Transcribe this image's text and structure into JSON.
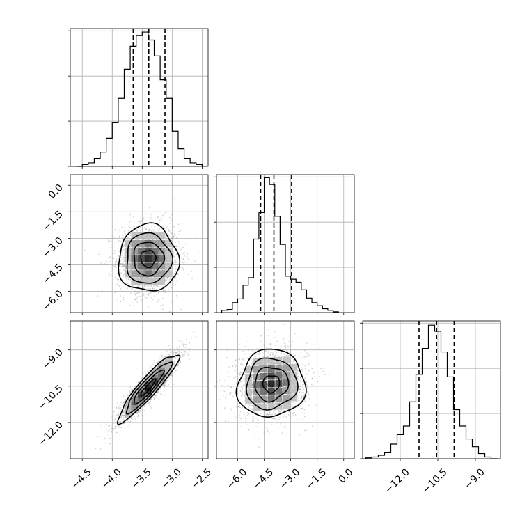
{
  "chart_data": {
    "type": "corner",
    "parameters": 3,
    "colors": {
      "line": "#000000",
      "grid": "#b0b0b0",
      "points": "#888888"
    },
    "grid": true,
    "diagonal": [
      {
        "type": "histogram",
        "parameter_index": 0,
        "xlim": [
          -4.7,
          -2.4
        ],
        "bins": [
          {
            "x": -4.55,
            "count": 0
          },
          {
            "x": -4.45,
            "count": 2
          },
          {
            "x": -4.35,
            "count": 4
          },
          {
            "x": -4.25,
            "count": 9
          },
          {
            "x": -4.15,
            "count": 16
          },
          {
            "x": -4.05,
            "count": 32
          },
          {
            "x": -3.95,
            "count": 50
          },
          {
            "x": -3.85,
            "count": 77
          },
          {
            "x": -3.75,
            "count": 110
          },
          {
            "x": -3.65,
            "count": 136
          },
          {
            "x": -3.55,
            "count": 148
          },
          {
            "x": -3.45,
            "count": 152
          },
          {
            "x": -3.35,
            "count": 143
          },
          {
            "x": -3.25,
            "count": 125
          },
          {
            "x": -3.15,
            "count": 98
          },
          {
            "x": -3.05,
            "count": 77
          },
          {
            "x": -2.95,
            "count": 40
          },
          {
            "x": -2.85,
            "count": 20
          },
          {
            "x": -2.75,
            "count": 9
          },
          {
            "x": -2.65,
            "count": 4
          },
          {
            "x": -2.55,
            "count": 2
          }
        ],
        "ymax": 156,
        "quantile_lines": [
          -3.65,
          -3.39,
          -3.12
        ]
      },
      {
        "type": "histogram",
        "parameter_index": 1,
        "xlim": [
          -7.2,
          0.6
        ],
        "bins": [
          {
            "x": -6.75,
            "count": 3
          },
          {
            "x": -6.45,
            "count": 4
          },
          {
            "x": -6.15,
            "count": 13
          },
          {
            "x": -5.85,
            "count": 18
          },
          {
            "x": -5.55,
            "count": 36
          },
          {
            "x": -5.25,
            "count": 46
          },
          {
            "x": -4.95,
            "count": 97
          },
          {
            "x": -4.65,
            "count": 132
          },
          {
            "x": -4.35,
            "count": 178
          },
          {
            "x": -4.05,
            "count": 169
          },
          {
            "x": -3.75,
            "count": 127
          },
          {
            "x": -3.45,
            "count": 90
          },
          {
            "x": -3.15,
            "count": 48
          },
          {
            "x": -2.85,
            "count": 44
          },
          {
            "x": -2.55,
            "count": 40
          },
          {
            "x": -2.25,
            "count": 30
          },
          {
            "x": -1.95,
            "count": 19
          },
          {
            "x": -1.65,
            "count": 13
          },
          {
            "x": -1.35,
            "count": 9
          },
          {
            "x": -1.05,
            "count": 5
          },
          {
            "x": -0.75,
            "count": 3
          },
          {
            "x": -0.45,
            "count": 1
          }
        ],
        "ymax": 182,
        "quantile_lines": [
          -4.7,
          -3.95,
          -2.95
        ]
      },
      {
        "type": "histogram",
        "parameter_index": 2,
        "xlim": [
          -13.5,
          -8.0
        ],
        "bins": [
          {
            "x": -13.25,
            "count": 1
          },
          {
            "x": -13.0,
            "count": 2
          },
          {
            "x": -12.75,
            "count": 4
          },
          {
            "x": -12.5,
            "count": 7
          },
          {
            "x": -12.25,
            "count": 17
          },
          {
            "x": -12.0,
            "count": 28
          },
          {
            "x": -11.75,
            "count": 38
          },
          {
            "x": -11.5,
            "count": 66
          },
          {
            "x": -11.25,
            "count": 98
          },
          {
            "x": -11.0,
            "count": 128
          },
          {
            "x": -10.75,
            "count": 155
          },
          {
            "x": -10.5,
            "count": 148
          },
          {
            "x": -10.25,
            "count": 124
          },
          {
            "x": -10.0,
            "count": 95
          },
          {
            "x": -9.75,
            "count": 57
          },
          {
            "x": -9.5,
            "count": 38
          },
          {
            "x": -9.25,
            "count": 23
          },
          {
            "x": -9.0,
            "count": 14
          },
          {
            "x": -8.75,
            "count": 6
          },
          {
            "x": -8.5,
            "count": 2
          },
          {
            "x": -8.25,
            "count": 0
          }
        ],
        "ymax": 160,
        "quantile_lines": [
          -11.25,
          -10.55,
          -9.85
        ]
      }
    ],
    "panels": [
      {
        "row": 1,
        "col": 0,
        "type": "density_contour",
        "xlim": [
          -4.7,
          -2.4
        ],
        "ylim": [
          -7.2,
          0.6
        ],
        "center": [
          -3.4,
          -4.15
        ],
        "sigma": [
          0.25,
          0.95
        ],
        "correlation": 0.0,
        "points": 1800
      },
      {
        "row": 2,
        "col": 0,
        "type": "density_contour",
        "xlim": [
          -4.7,
          -2.4
        ],
        "ylim": [
          -13.5,
          -7.8
        ],
        "center": [
          -3.4,
          -10.55
        ],
        "sigma": [
          0.25,
          0.7
        ],
        "correlation": 0.92,
        "points": 1800
      },
      {
        "row": 2,
        "col": 1,
        "type": "density_contour",
        "xlim": [
          -7.2,
          0.6
        ],
        "ylim": [
          -13.5,
          -7.8
        ],
        "center": [
          -4.1,
          -10.4
        ],
        "sigma": [
          0.95,
          0.7
        ],
        "correlation": 0.05,
        "points": 1800
      }
    ],
    "axes_ticks": {
      "x0": [
        "−4.5",
        "−4.0",
        "−3.5",
        "−3.0",
        "−2.5"
      ],
      "x0_values": [
        -4.5,
        -4.0,
        -3.5,
        -3.0,
        -2.5
      ],
      "x1": [
        "−6.0",
        "−4.5",
        "−3.0",
        "−1.5",
        "0.0"
      ],
      "x1_values": [
        -6.0,
        -4.5,
        -3.0,
        -1.5,
        0.0
      ],
      "x2": [
        "−12.0",
        "−10.5",
        "−9.0"
      ],
      "x2_values": [
        -12.0,
        -10.5,
        -9.0
      ],
      "y1": [
        "0.0",
        "−1.5",
        "−3.0",
        "−4.5",
        "−6.0"
      ],
      "y1_values": [
        0.0,
        -1.5,
        -3.0,
        -4.5,
        -6.0
      ],
      "y2": [
        "−9.0",
        "−10.5",
        "−12.0"
      ],
      "y2_values": [
        -9.0,
        -10.5,
        -12.0
      ]
    }
  }
}
